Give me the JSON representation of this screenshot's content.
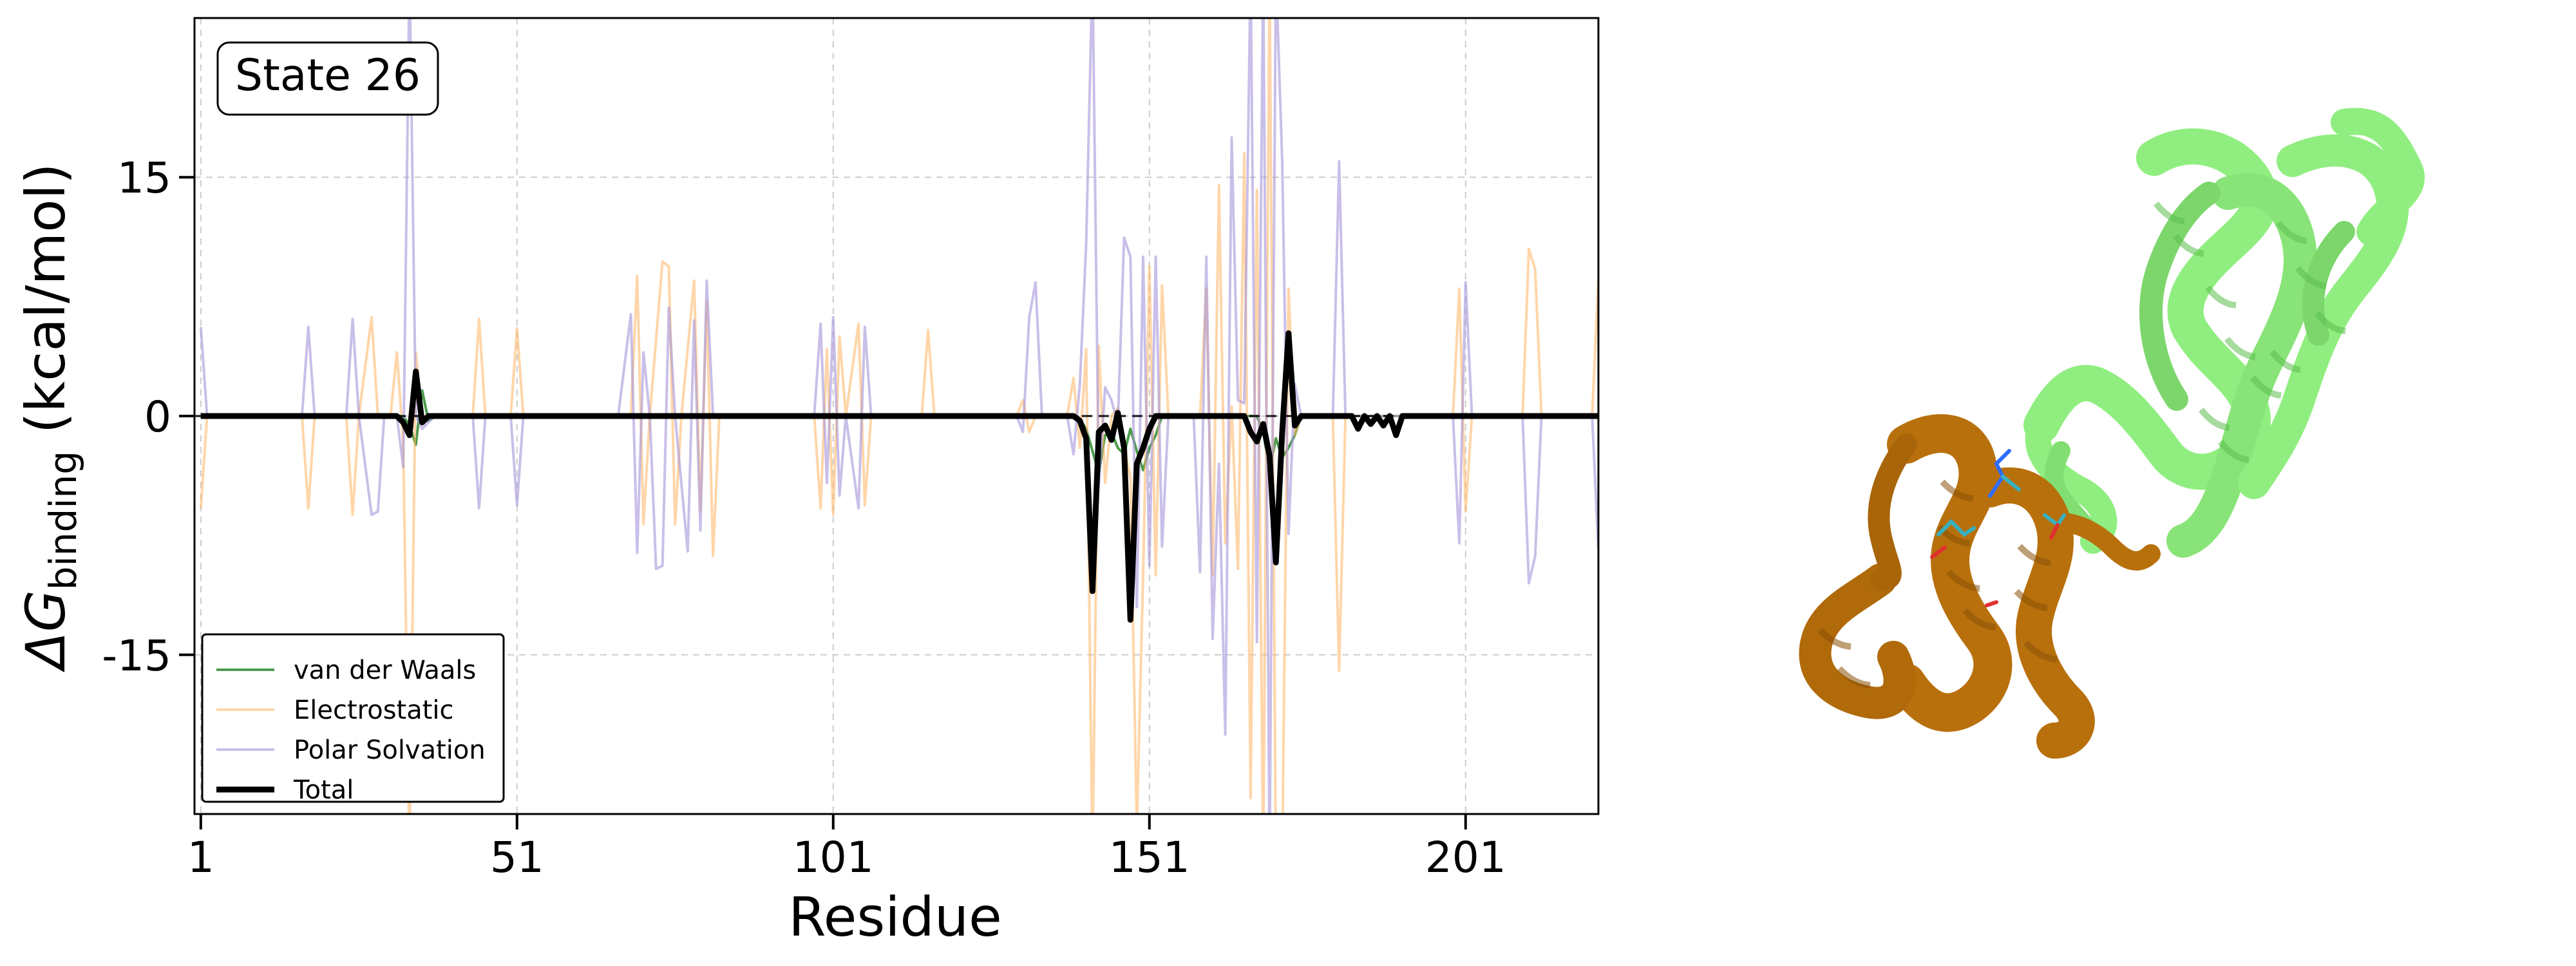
{
  "chart_data": {
    "type": "line",
    "annotation": "State 26",
    "xlabel": "Residue",
    "ylabel_main": "ΔG",
    "ylabel_sub": "binding",
    "ylabel_unit": " (kcal/mol)",
    "xlim": [
      0,
      222
    ],
    "ylim": [
      -25,
      25
    ],
    "xticks": [
      1,
      51,
      101,
      151,
      201
    ],
    "yticks": [
      15,
      0,
      -15
    ],
    "ytick_labels": [
      "15",
      "0",
      "-15"
    ],
    "grid": true,
    "legend_position": "lower-left",
    "series": [
      {
        "name": "van der Waals",
        "color": "#2e8b2e",
        "alpha": 0.85,
        "width": 4,
        "points": [
          [
            1,
            0
          ],
          [
            33,
            0
          ],
          [
            34,
            -0.6
          ],
          [
            35,
            -1.8
          ],
          [
            36,
            1.6
          ],
          [
            37,
            -0.3
          ],
          [
            38,
            0
          ],
          [
            139,
            0
          ],
          [
            140,
            -0.2
          ],
          [
            141,
            -0.8
          ],
          [
            142,
            -2.2
          ],
          [
            143,
            -3.6
          ],
          [
            144,
            -1.2
          ],
          [
            145,
            -1.0
          ],
          [
            146,
            -2.0
          ],
          [
            147,
            -2.4
          ],
          [
            148,
            -0.8
          ],
          [
            149,
            -2.2
          ],
          [
            150,
            -3.4
          ],
          [
            151,
            -2.0
          ],
          [
            152,
            -1.2
          ],
          [
            153,
            0
          ],
          [
            168,
            0
          ],
          [
            169,
            -1.0
          ],
          [
            170,
            -3.4
          ],
          [
            171,
            -1.4
          ],
          [
            172,
            -2.6
          ],
          [
            173,
            -2.0
          ],
          [
            174,
            -1.2
          ],
          [
            175,
            0
          ],
          [
            222,
            0
          ]
        ]
      },
      {
        "name": "Electrostatic",
        "color": "#ffb463",
        "alpha": 0.55,
        "width": 4,
        "points": [
          [
            1,
            -5.8
          ],
          [
            2,
            0
          ],
          [
            17,
            0
          ],
          [
            18,
            -5.8
          ],
          [
            19,
            0
          ],
          [
            24,
            0
          ],
          [
            25,
            -6.2
          ],
          [
            26,
            0
          ],
          [
            28,
            6.2
          ],
          [
            29,
            0
          ],
          [
            31,
            0
          ],
          [
            32,
            4.0
          ],
          [
            33,
            -1.6
          ],
          [
            34,
            -28
          ],
          [
            35,
            4.0
          ],
          [
            36,
            0
          ],
          [
            44,
            0
          ],
          [
            45,
            6.1
          ],
          [
            46,
            0
          ],
          [
            50,
            0
          ],
          [
            51,
            5.5
          ],
          [
            52,
            0
          ],
          [
            61,
            0
          ],
          [
            63,
            0
          ],
          [
            64,
            0
          ],
          [
            66,
            0
          ],
          [
            69,
            0
          ],
          [
            70,
            8.8
          ],
          [
            71,
            -6.8
          ],
          [
            72,
            0
          ],
          [
            74,
            9.7
          ],
          [
            75,
            9.4
          ],
          [
            76,
            -6.8
          ],
          [
            77,
            0
          ],
          [
            79,
            8.5
          ],
          [
            80,
            -6.0
          ],
          [
            81,
            7.2
          ],
          [
            82,
            -8.8
          ],
          [
            83,
            0
          ],
          [
            98,
            0
          ],
          [
            99,
            -5.8
          ],
          [
            100,
            4.2
          ],
          [
            101,
            -6.2
          ],
          [
            102,
            5.0
          ],
          [
            103,
            0
          ],
          [
            105,
            5.8
          ],
          [
            106,
            -5.6
          ],
          [
            107,
            0
          ],
          [
            115,
            0
          ],
          [
            116,
            5.4
          ],
          [
            117,
            0
          ],
          [
            130,
            0
          ],
          [
            131,
            1.0
          ],
          [
            132,
            -1.0
          ],
          [
            133,
            0
          ],
          [
            138,
            0
          ],
          [
            139,
            2.4
          ],
          [
            140,
            -2.0
          ],
          [
            141,
            4.2
          ],
          [
            142,
            -28
          ],
          [
            143,
            4.4
          ],
          [
            144,
            -4.2
          ],
          [
            145,
            0
          ],
          [
            146,
            0.5
          ],
          [
            147,
            -2.0
          ],
          [
            148,
            -3.8
          ],
          [
            149,
            -26
          ],
          [
            150,
            -10
          ],
          [
            151,
            9.4
          ],
          [
            152,
            -10
          ],
          [
            153,
            8.2
          ],
          [
            154,
            0
          ],
          [
            159,
            0
          ],
          [
            160,
            8.0
          ],
          [
            161,
            -10
          ],
          [
            162,
            14.5
          ],
          [
            163,
            -8.0
          ],
          [
            164,
            0.6
          ],
          [
            165,
            -9.6
          ],
          [
            166,
            16.5
          ],
          [
            167,
            -24
          ],
          [
            168,
            14.2
          ],
          [
            169,
            -28
          ],
          [
            170,
            28
          ],
          [
            171,
            -28
          ],
          [
            172,
            -28
          ],
          [
            173,
            8.0
          ],
          [
            174,
            -1.2
          ],
          [
            175,
            0
          ],
          [
            180,
            0
          ],
          [
            181,
            -16
          ],
          [
            182,
            0
          ],
          [
            199,
            0
          ],
          [
            200,
            8.0
          ],
          [
            201,
            -6.0
          ],
          [
            202,
            0
          ],
          [
            210,
            0
          ],
          [
            211,
            10.5
          ],
          [
            212,
            9.2
          ],
          [
            213,
            0
          ],
          [
            221,
            0
          ],
          [
            222,
            8.6
          ]
        ]
      },
      {
        "name": "Polar Solvation",
        "color": "#a595da",
        "alpha": 0.6,
        "width": 4,
        "points": [
          [
            1,
            5.6
          ],
          [
            2,
            0
          ],
          [
            17,
            0
          ],
          [
            18,
            5.6
          ],
          [
            19,
            0
          ],
          [
            24,
            0
          ],
          [
            25,
            6.1
          ],
          [
            26,
            0
          ],
          [
            28,
            -6.2
          ],
          [
            29,
            -6.0
          ],
          [
            30,
            0
          ],
          [
            32,
            0
          ],
          [
            33,
            -3.2
          ],
          [
            34,
            28
          ],
          [
            35,
            0
          ],
          [
            36,
            -0.8
          ],
          [
            37,
            -0.4
          ],
          [
            38,
            0
          ],
          [
            44,
            0
          ],
          [
            45,
            -5.8
          ],
          [
            46,
            0
          ],
          [
            50,
            0
          ],
          [
            51,
            -5.6
          ],
          [
            52,
            0
          ],
          [
            67,
            0
          ],
          [
            69,
            6.4
          ],
          [
            70,
            -8.6
          ],
          [
            71,
            4.0
          ],
          [
            72,
            0
          ],
          [
            73,
            -9.6
          ],
          [
            74,
            -9.4
          ],
          [
            75,
            6.8
          ],
          [
            76,
            0
          ],
          [
            78,
            -8.5
          ],
          [
            79,
            6.0
          ],
          [
            80,
            -7.2
          ],
          [
            81,
            8.5
          ],
          [
            82,
            0
          ],
          [
            98,
            0
          ],
          [
            99,
            5.8
          ],
          [
            100,
            -4.2
          ],
          [
            101,
            6.2
          ],
          [
            102,
            -5.0
          ],
          [
            103,
            0
          ],
          [
            105,
            -5.8
          ],
          [
            106,
            5.6
          ],
          [
            107,
            0
          ],
          [
            130,
            0
          ],
          [
            131,
            -1.0
          ],
          [
            132,
            6.2
          ],
          [
            133,
            8.4
          ],
          [
            134,
            0
          ],
          [
            138,
            0
          ],
          [
            139,
            -2.4
          ],
          [
            140,
            2.0
          ],
          [
            141,
            10.8
          ],
          [
            142,
            28
          ],
          [
            143,
            -4.4
          ],
          [
            144,
            1.8
          ],
          [
            145,
            1.0
          ],
          [
            146,
            -0.5
          ],
          [
            147,
            11.2
          ],
          [
            148,
            10.0
          ],
          [
            149,
            -12.0
          ],
          [
            150,
            10.0
          ],
          [
            151,
            -9.4
          ],
          [
            152,
            10.0
          ],
          [
            153,
            -8.2
          ],
          [
            154,
            0
          ],
          [
            158,
            0
          ],
          [
            159,
            -9.8
          ],
          [
            160,
            10.0
          ],
          [
            161,
            -14.0
          ],
          [
            162,
            -3.0
          ],
          [
            163,
            -20.0
          ],
          [
            164,
            17.5
          ],
          [
            165,
            1.0
          ],
          [
            166,
            0.8
          ],
          [
            167,
            28
          ],
          [
            168,
            -14.2
          ],
          [
            169,
            28
          ],
          [
            170,
            -28
          ],
          [
            171,
            28
          ],
          [
            172,
            16.0
          ],
          [
            173,
            -7.4
          ],
          [
            174,
            2.0
          ],
          [
            175,
            0
          ],
          [
            180,
            0
          ],
          [
            181,
            16.0
          ],
          [
            182,
            0
          ],
          [
            199,
            0
          ],
          [
            200,
            -8.0
          ],
          [
            201,
            8.4
          ],
          [
            202,
            0
          ],
          [
            210,
            0
          ],
          [
            211,
            -10.5
          ],
          [
            212,
            -8.8
          ],
          [
            213,
            0
          ],
          [
            221,
            0
          ],
          [
            222,
            -8.4
          ]
        ]
      },
      {
        "name": "Total",
        "color": "#000000",
        "alpha": 1,
        "width": 9,
        "points": [
          [
            1,
            0
          ],
          [
            32,
            0
          ],
          [
            33,
            -0.4
          ],
          [
            34,
            -1.2
          ],
          [
            35,
            2.8
          ],
          [
            36,
            -0.4
          ],
          [
            37,
            0
          ],
          [
            139,
            0
          ],
          [
            140,
            -0.3
          ],
          [
            141,
            -1.4
          ],
          [
            142,
            -11.0
          ],
          [
            143,
            -1.0
          ],
          [
            144,
            -0.6
          ],
          [
            145,
            -1.5
          ],
          [
            146,
            0.2
          ],
          [
            147,
            -2.0
          ],
          [
            148,
            -12.8
          ],
          [
            149,
            -3.0
          ],
          [
            150,
            -2.0
          ],
          [
            151,
            -0.8
          ],
          [
            152,
            0
          ],
          [
            166,
            0
          ],
          [
            167,
            -1.0
          ],
          [
            168,
            -1.6
          ],
          [
            169,
            -0.5
          ],
          [
            170,
            -2.5
          ],
          [
            171,
            -9.2
          ],
          [
            172,
            -1.0
          ],
          [
            173,
            5.2
          ],
          [
            174,
            -0.6
          ],
          [
            175,
            0
          ],
          [
            183,
            0
          ],
          [
            184,
            -0.8
          ],
          [
            185,
            0
          ],
          [
            186,
            -0.5
          ],
          [
            187,
            0
          ],
          [
            188,
            -0.6
          ],
          [
            189,
            0
          ],
          [
            190,
            -1.2
          ],
          [
            191,
            0
          ],
          [
            222,
            0
          ]
        ]
      }
    ]
  },
  "structure_panel": {
    "chain_a_color": "#b8700c",
    "chain_b_color": "#90ee80"
  }
}
